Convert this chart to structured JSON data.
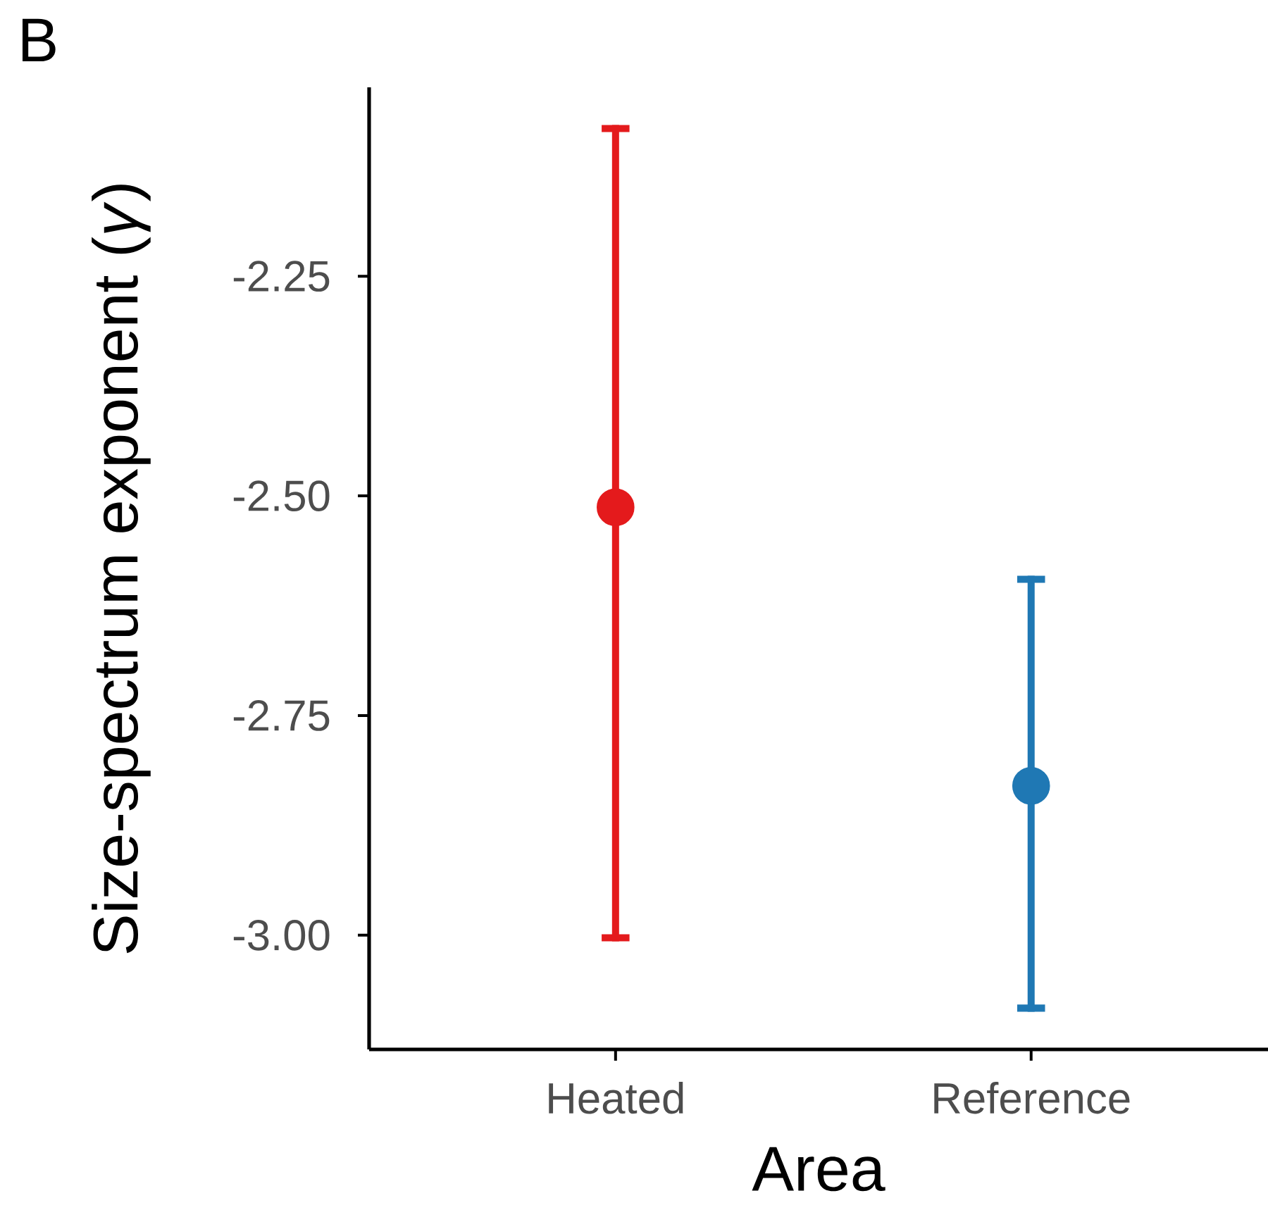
{
  "chart_data": {
    "type": "scatter",
    "title": "B",
    "xlabel": "Area",
    "ylabel": "Size-spectrum exponent (*γ*)",
    "categories": [
      "Heated",
      "Reference"
    ],
    "values": [
      -2.513,
      -2.83
    ],
    "errors": [
      [
        -3.003,
        -2.082
      ],
      [
        -3.083,
        -2.595
      ]
    ],
    "colors": [
      "#e41a1c",
      "#1f78b4"
    ],
    "ylim": [
      -3.13,
      -2.035
    ],
    "yticks": [
      -2.25,
      {
        "value": -2.5,
        "label": "-2.50"
      },
      -2.75,
      {
        "value": -3.0,
        "label": "-3.00"
      }
    ]
  }
}
